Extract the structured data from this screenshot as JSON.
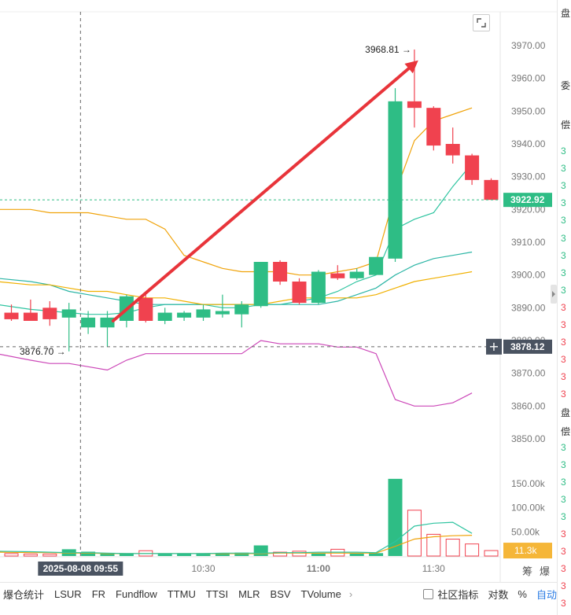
{
  "chart_data": {
    "type": "candlestick",
    "y_axis": {
      "ticks": [
        "3970.00",
        "3960.00",
        "3950.00",
        "3940.00",
        "3930.00",
        "3920.00",
        "3910.00",
        "3900.00",
        "3890.00",
        "3880.00",
        "3870.00",
        "3860.00",
        "3850.00"
      ],
      "range": [
        3845,
        3975
      ]
    },
    "volume_axis": {
      "ticks": [
        "150.00k",
        "100.00k",
        "50.00k"
      ],
      "range": [
        0,
        175
      ]
    },
    "x_axis": {
      "ticks": [
        {
          "label": "10:30",
          "index": 10
        },
        {
          "label": "11:00",
          "index": 16
        },
        {
          "label": "11:30",
          "index": 22
        }
      ]
    },
    "cursor": {
      "time_label": "2025-08-08 09:55",
      "price_label": "3878.12",
      "index": 3.6
    },
    "last_price": {
      "label": "3922.92",
      "value": 3922.92
    },
    "volume_last": {
      "label": "11.3k",
      "value": 11.3
    },
    "annotations": {
      "high_label": "3968.81",
      "high_value": 3968.81,
      "low_label": "3876.70",
      "low_value": 3876.7
    },
    "candles": [
      {
        "o": 3888.5,
        "h": 3891,
        "l": 3886,
        "c": 3886.5,
        "v": 5
      },
      {
        "o": 3888.5,
        "h": 3892.5,
        "l": 3886,
        "c": 3886,
        "v": 4
      },
      {
        "o": 3890,
        "h": 3892,
        "l": 3884.5,
        "c": 3886.5,
        "v": 4
      },
      {
        "o": 3887,
        "h": 3891.5,
        "l": 3876.7,
        "c": 3889.5,
        "v": 14
      },
      {
        "o": 3884,
        "h": 3889,
        "l": 3882,
        "c": 3887,
        "v": 9
      },
      {
        "o": 3884,
        "h": 3889,
        "l": 3878,
        "c": 3887,
        "v": 6
      },
      {
        "o": 3886,
        "h": 3894,
        "l": 3884,
        "c": 3893.5,
        "v": 5
      },
      {
        "o": 3893,
        "h": 3894,
        "l": 3885.5,
        "c": 3886,
        "v": 11
      },
      {
        "o": 3886,
        "h": 3890,
        "l": 3885,
        "c": 3888.5,
        "v": 4
      },
      {
        "o": 3887,
        "h": 3889,
        "l": 3886,
        "c": 3888.5,
        "v": 5
      },
      {
        "o": 3887,
        "h": 3891,
        "l": 3886,
        "c": 3889.5,
        "v": 4
      },
      {
        "o": 3888,
        "h": 3894,
        "l": 3887,
        "c": 3889,
        "v": 6
      },
      {
        "o": 3888,
        "h": 3892,
        "l": 3884,
        "c": 3891,
        "v": 7
      },
      {
        "o": 3890.5,
        "h": 3904,
        "l": 3890,
        "c": 3904,
        "v": 22
      },
      {
        "o": 3904,
        "h": 3904.5,
        "l": 3897,
        "c": 3898,
        "v": 8
      },
      {
        "o": 3898,
        "h": 3899,
        "l": 3891,
        "c": 3891.5,
        "v": 10
      },
      {
        "o": 3891.5,
        "h": 3901.5,
        "l": 3891,
        "c": 3901,
        "v": 5
      },
      {
        "o": 3900.5,
        "h": 3903,
        "l": 3898.5,
        "c": 3899,
        "v": 14
      },
      {
        "o": 3899,
        "h": 3902,
        "l": 3898.5,
        "c": 3901,
        "v": 5
      },
      {
        "o": 3900,
        "h": 3905.5,
        "l": 3900,
        "c": 3905.5,
        "v": 6
      },
      {
        "o": 3905,
        "h": 3957,
        "l": 3904,
        "c": 3953,
        "v": 160
      },
      {
        "o": 3953,
        "h": 3968.81,
        "l": 3945,
        "c": 3951,
        "v": 95
      },
      {
        "o": 3951,
        "h": 3951.5,
        "l": 3938,
        "c": 3939.5,
        "v": 45
      },
      {
        "o": 3940,
        "h": 3945,
        "l": 3934,
        "c": 3936.5,
        "v": 35
      },
      {
        "o": 3936.5,
        "h": 3937,
        "l": 3927.5,
        "c": 3929,
        "v": 25
      },
      {
        "o": 3929,
        "h": 3929.5,
        "l": 3922.92,
        "c": 3922.92,
        "v": 11.3
      }
    ],
    "lines": [
      {
        "color": "#f0a30a",
        "points": [
          3920,
          3920,
          3919,
          3919,
          3919,
          3918,
          3917,
          3917,
          3914,
          3906,
          3904,
          3902,
          3901,
          3901,
          3901,
          3900,
          3900,
          3901,
          3902,
          3904,
          3925,
          3941,
          3947,
          3949,
          3951
        ]
      },
      {
        "color": "#2ec4a0",
        "points": [
          3891,
          3889.5,
          3889,
          3888.5,
          3888,
          3888,
          3888.5,
          3890,
          3891,
          3891,
          3891,
          3890,
          3890,
          3891,
          3891,
          3892,
          3893,
          3895,
          3898,
          3900,
          3914,
          3917,
          3919,
          3927,
          3934
        ]
      },
      {
        "color": "#2bb5a5",
        "points": [
          3899,
          3898,
          3897,
          3895,
          3894,
          3893,
          3892,
          3891,
          3891,
          3891,
          3891,
          3891,
          3891,
          3891,
          3891,
          3891,
          3891,
          3892,
          3894,
          3896,
          3900,
          3903,
          3905,
          3906,
          3907
        ]
      },
      {
        "color": "#f0b000",
        "points": [
          3898,
          3897,
          3897,
          3896,
          3895,
          3895,
          3894,
          3893,
          3893,
          3892,
          3891,
          3891,
          3891,
          3891,
          3892,
          3893,
          3893,
          3893,
          3893,
          3894,
          3896,
          3898,
          3899,
          3900,
          3901
        ]
      },
      {
        "color": "#cc47b8",
        "points": [
          3876,
          3874,
          3873,
          3873,
          3872,
          3871,
          3874,
          3876,
          3876,
          3876,
          3876,
          3876,
          3876,
          3880,
          3879,
          3879,
          3879,
          3878,
          3878,
          3876,
          3862,
          3860,
          3860,
          3861,
          3864
        ]
      }
    ],
    "volume_lines": [
      {
        "color": "#f0a30a",
        "points": [
          8,
          7,
          7,
          6,
          6,
          5,
          5,
          5,
          5,
          5,
          5,
          5,
          5,
          5,
          6,
          6,
          6,
          6,
          6,
          6,
          20,
          35,
          40,
          42,
          43
        ]
      },
      {
        "color": "#2ec4a0",
        "points": [
          10,
          9,
          8,
          7,
          7,
          6,
          5,
          5,
          5,
          5,
          5,
          6,
          6,
          6,
          7,
          7,
          8,
          8,
          8,
          7,
          30,
          62,
          68,
          70,
          47
        ]
      }
    ]
  },
  "toolbar": {
    "tabs": [
      "爆仓统计",
      "LSUR",
      "FR",
      "Fundflow",
      "TTMU",
      "TTSI",
      "MLR",
      "BSV",
      "TVolume"
    ],
    "forum": "社区指标",
    "log": "对数",
    "percent": "%",
    "auto": "自动"
  },
  "side_labels": {
    "chip": "筹",
    "burst": "爆"
  },
  "right_strip": [
    "盘",
    "委",
    "偿",
    "3",
    "3",
    "3",
    "3",
    "3",
    "3",
    "3",
    "3",
    "3",
    "3",
    "3",
    "3",
    "3",
    "3",
    "3",
    "盘",
    "偿",
    "3",
    "3",
    "3",
    "3",
    "3",
    "3",
    "3",
    "3",
    "3",
    "3"
  ]
}
